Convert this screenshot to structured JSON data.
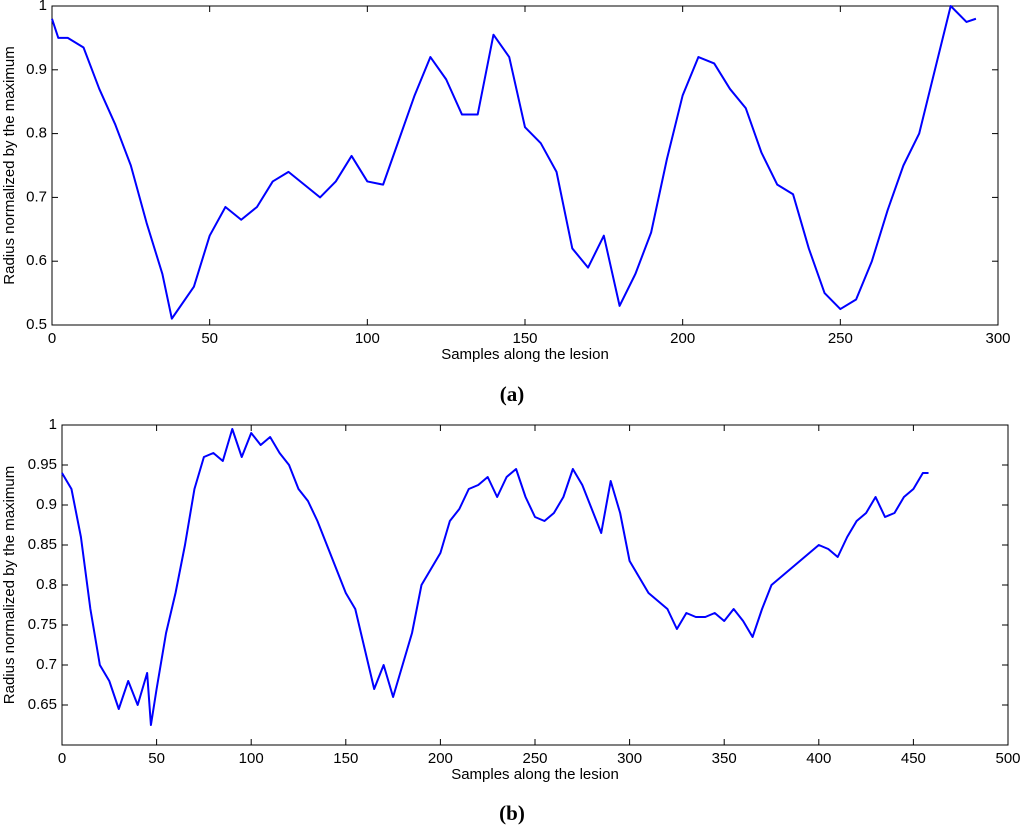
{
  "chart_data": [
    {
      "type": "line",
      "xlabel": "Samples along the lesion",
      "ylabel": "Radius normalized by the maximum",
      "caption": "(a)",
      "x": [
        0,
        2,
        5,
        10,
        15,
        20,
        25,
        30,
        35,
        38,
        45,
        50,
        55,
        60,
        65,
        70,
        75,
        80,
        85,
        90,
        95,
        100,
        105,
        110,
        115,
        120,
        125,
        130,
        135,
        140,
        145,
        150,
        155,
        160,
        165,
        170,
        175,
        180,
        185,
        190,
        195,
        200,
        205,
        210,
        215,
        220,
        225,
        230,
        235,
        240,
        245,
        250,
        255,
        260,
        265,
        270,
        275,
        280,
        285,
        290,
        293
      ],
      "series": [
        {
          "color": "#0000ff",
          "values": [
            0.98,
            0.95,
            0.95,
            0.935,
            0.87,
            0.815,
            0.75,
            0.66,
            0.58,
            0.51,
            0.56,
            0.64,
            0.685,
            0.665,
            0.685,
            0.725,
            0.74,
            0.72,
            0.7,
            0.725,
            0.765,
            0.725,
            0.72,
            0.79,
            0.86,
            0.92,
            0.885,
            0.83,
            0.83,
            0.955,
            0.92,
            0.81,
            0.785,
            0.74,
            0.62,
            0.59,
            0.64,
            0.53,
            0.58,
            0.645,
            0.76,
            0.86,
            0.92,
            0.91,
            0.87,
            0.84,
            0.77,
            0.72,
            0.705,
            0.62,
            0.55,
            0.525,
            0.54,
            0.6,
            0.68,
            0.75,
            0.8,
            0.9,
            1.0,
            0.975,
            0.98
          ]
        }
      ],
      "xlim": [
        0,
        300
      ],
      "xticks": [
        0,
        50,
        100,
        150,
        200,
        250,
        300
      ],
      "ylim": [
        0.5,
        1
      ],
      "yticks": [
        0.5,
        0.6,
        0.7,
        0.8,
        0.9,
        1
      ]
    },
    {
      "type": "line",
      "xlabel": "Samples along the lesion",
      "ylabel": "Radius normalized by the maximum",
      "caption": "(b)",
      "x": [
        0,
        5,
        10,
        15,
        20,
        25,
        30,
        35,
        40,
        45,
        47,
        50,
        55,
        60,
        65,
        70,
        75,
        80,
        85,
        90,
        95,
        100,
        105,
        110,
        115,
        120,
        125,
        130,
        135,
        140,
        145,
        150,
        155,
        160,
        165,
        170,
        175,
        180,
        185,
        190,
        195,
        200,
        205,
        210,
        215,
        220,
        225,
        230,
        235,
        240,
        245,
        250,
        255,
        260,
        265,
        270,
        275,
        280,
        285,
        290,
        295,
        300,
        305,
        310,
        315,
        320,
        325,
        330,
        335,
        340,
        345,
        350,
        355,
        360,
        365,
        370,
        375,
        380,
        385,
        390,
        395,
        400,
        405,
        410,
        415,
        420,
        425,
        430,
        435,
        440,
        445,
        450,
        455,
        458
      ],
      "series": [
        {
          "color": "#0000ff",
          "values": [
            0.94,
            0.92,
            0.86,
            0.77,
            0.7,
            0.68,
            0.645,
            0.68,
            0.65,
            0.69,
            0.625,
            0.67,
            0.74,
            0.79,
            0.85,
            0.92,
            0.96,
            0.965,
            0.955,
            0.995,
            0.96,
            0.99,
            0.975,
            0.985,
            0.965,
            0.95,
            0.92,
            0.905,
            0.88,
            0.85,
            0.82,
            0.79,
            0.77,
            0.72,
            0.67,
            0.7,
            0.66,
            0.7,
            0.74,
            0.8,
            0.82,
            0.84,
            0.88,
            0.895,
            0.92,
            0.925,
            0.935,
            0.91,
            0.935,
            0.945,
            0.91,
            0.885,
            0.88,
            0.89,
            0.91,
            0.945,
            0.925,
            0.895,
            0.865,
            0.93,
            0.89,
            0.83,
            0.81,
            0.79,
            0.78,
            0.77,
            0.745,
            0.765,
            0.76,
            0.76,
            0.765,
            0.755,
            0.77,
            0.755,
            0.735,
            0.77,
            0.8,
            0.81,
            0.82,
            0.83,
            0.84,
            0.85,
            0.845,
            0.835,
            0.86,
            0.88,
            0.89,
            0.91,
            0.885,
            0.89,
            0.91,
            0.92,
            0.94,
            0.94
          ]
        }
      ],
      "xlim": [
        0,
        500
      ],
      "xticks": [
        0,
        50,
        100,
        150,
        200,
        250,
        300,
        350,
        400,
        450,
        500
      ],
      "ylim": [
        0.6,
        1
      ],
      "yticks": [
        0.65,
        0.7,
        0.75,
        0.8,
        0.85,
        0.9,
        0.95,
        1
      ]
    }
  ]
}
